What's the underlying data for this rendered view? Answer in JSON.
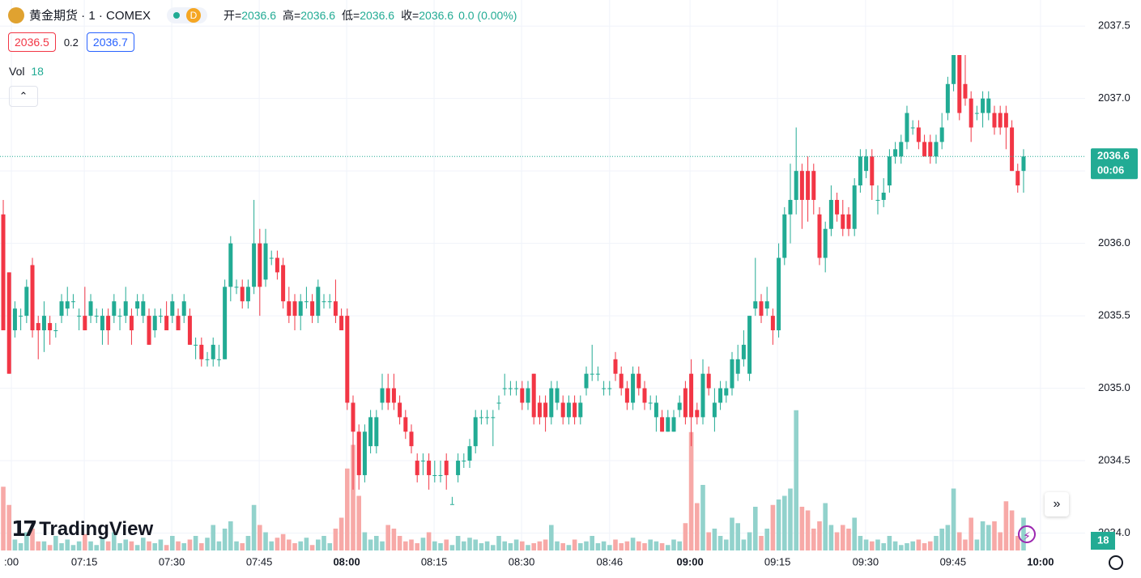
{
  "header": {
    "symbol": "黄金期货 · 1 · COMEX",
    "badge": "D",
    "ohlc": [
      {
        "label": "开=",
        "value": 2036.6
      },
      {
        "label": "高=",
        "value": 2036.6
      },
      {
        "label": "低=",
        "value": 2036.6
      },
      {
        "label": "收=",
        "value": 2036.6
      }
    ],
    "change": "0.0 (0.00%)",
    "bid": 2036.5,
    "spread": 0.2,
    "ask": 2036.7,
    "vol_label": "Vol"
  },
  "logo": "TradingView",
  "chart_data": {
    "type": "candlestick",
    "up_color": "#22ab94",
    "down_color": "#f23645",
    "volume_up_color": "#92d2cc",
    "volume_down_color": "#f7a9a7",
    "grid": true,
    "xlim": [
      -0.56,
      185.56
    ],
    "xticks": [
      {
        "value": 1.39,
        "label": ":00"
      },
      {
        "value": 13.9,
        "label": "07:15"
      },
      {
        "value": 28.9,
        "label": "07:30"
      },
      {
        "value": 43.9,
        "label": "07:45"
      },
      {
        "value": 58.9,
        "label": "08:00",
        "bold": true
      },
      {
        "value": 73.9,
        "label": "08:15"
      },
      {
        "value": 88.9,
        "label": "08:30"
      },
      {
        "value": 104.0,
        "label": "08:46"
      },
      {
        "value": 117.8,
        "label": "09:00",
        "bold": true
      },
      {
        "value": 132.8,
        "label": "09:15"
      },
      {
        "value": 147.9,
        "label": "09:30"
      },
      {
        "value": 162.9,
        "label": "09:45"
      },
      {
        "value": 177.9,
        "label": "10:00",
        "bold": true
      }
    ],
    "ylim": [
      2033.88,
      2037.68
    ],
    "yticks": [
      {
        "value": 2034.0,
        "label": "2034.0"
      },
      2034.5,
      {
        "value": 2035.0,
        "label": "2035.0"
      },
      2035.5,
      {
        "value": 2036.0,
        "label": "2036.0"
      },
      2036.5,
      {
        "value": 2037.0,
        "label": "2037.0"
      },
      2037.5
    ],
    "vlim": [
      0,
      80
    ],
    "last_price": 2036.6,
    "countdown": "00:06",
    "ohlc": [
      [
        2036.2,
        2036.3,
        2035.4,
        2035.4
      ],
      [
        2035.8,
        2035.8,
        2035.1,
        2035.1
      ],
      [
        2035.4,
        2035.6,
        2035.35,
        2035.55
      ],
      [
        2035.5,
        2035.55,
        2035.4,
        2035.5
      ],
      [
        2035.5,
        2035.75,
        2035.45,
        2035.7
      ],
      [
        2035.85,
        2035.9,
        2035.35,
        2035.4
      ],
      [
        2035.45,
        2035.5,
        2035.2,
        2035.4
      ],
      [
        2035.4,
        2035.6,
        2035.25,
        2035.5
      ],
      [
        2035.45,
        2035.5,
        2035.3,
        2035.4
      ],
      [
        2035.4,
        2035.45,
        2035.35,
        2035.4
      ],
      [
        2035.5,
        2035.65,
        2035.45,
        2035.6
      ],
      [
        2035.55,
        2035.7,
        2035.5,
        2035.6
      ],
      [
        2035.6,
        2035.65,
        2035.55,
        2035.6
      ],
      [
        2035.5,
        2035.55,
        2035.4,
        2035.5
      ],
      [
        2035.5,
        2035.7,
        2035.4,
        2035.4
      ],
      [
        2035.5,
        2035.65,
        2035.45,
        2035.6
      ],
      [
        2035.5,
        2035.55,
        2035.45,
        2035.5
      ],
      [
        2035.4,
        2035.55,
        2035.3,
        2035.5
      ],
      [
        2035.5,
        2035.55,
        2035.3,
        2035.4
      ],
      [
        2035.5,
        2035.65,
        2035.45,
        2035.6
      ],
      [
        2035.5,
        2035.55,
        2035.4,
        2035.5
      ],
      [
        2035.5,
        2035.7,
        2035.45,
        2035.6
      ],
      [
        2035.5,
        2035.55,
        2035.3,
        2035.4
      ],
      [
        2035.55,
        2035.65,
        2035.5,
        2035.6
      ],
      [
        2035.5,
        2035.65,
        2035.45,
        2035.6
      ],
      [
        2035.5,
        2035.55,
        2035.3,
        2035.3
      ],
      [
        2035.4,
        2035.55,
        2035.35,
        2035.5
      ],
      [
        2035.5,
        2035.55,
        2035.45,
        2035.5
      ],
      [
        2035.5,
        2035.6,
        2035.4,
        2035.4
      ],
      [
        2035.5,
        2035.65,
        2035.45,
        2035.6
      ],
      [
        2035.5,
        2035.55,
        2035.4,
        2035.4
      ],
      [
        2035.5,
        2035.65,
        2035.45,
        2035.6
      ],
      [
        2035.5,
        2035.55,
        2035.3,
        2035.3
      ],
      [
        2035.3,
        2035.35,
        2035.2,
        2035.3
      ],
      [
        2035.3,
        2035.35,
        2035.15,
        2035.2
      ],
      [
        2035.2,
        2035.25,
        2035.15,
        2035.2
      ],
      [
        2035.2,
        2035.35,
        2035.15,
        2035.3
      ],
      [
        2035.2,
        2035.3,
        2035.15,
        2035.2
      ],
      [
        2035.2,
        2035.75,
        2035.2,
        2035.7
      ],
      [
        2035.7,
        2036.05,
        2035.6,
        2036.0
      ],
      [
        2035.7,
        2035.75,
        2035.65,
        2035.7
      ],
      [
        2035.7,
        2035.75,
        2035.55,
        2035.6
      ],
      [
        2035.6,
        2035.75,
        2035.55,
        2035.7
      ],
      [
        2035.7,
        2036.3,
        2035.65,
        2036.0
      ],
      [
        2036.0,
        2036.1,
        2035.5,
        2035.7
      ],
      [
        2035.75,
        2036.1,
        2035.7,
        2036.0
      ],
      [
        2035.9,
        2035.95,
        2035.85,
        2035.9
      ],
      [
        2035.9,
        2035.95,
        2035.75,
        2035.8
      ],
      [
        2035.85,
        2035.9,
        2035.55,
        2035.6
      ],
      [
        2035.6,
        2035.7,
        2035.45,
        2035.5
      ],
      [
        2035.6,
        2035.65,
        2035.4,
        2035.5
      ],
      [
        2035.5,
        2035.65,
        2035.4,
        2035.6
      ],
      [
        2035.6,
        2035.7,
        2035.55,
        2035.6
      ],
      [
        2035.6,
        2035.65,
        2035.45,
        2035.5
      ],
      [
        2035.5,
        2035.75,
        2035.45,
        2035.7
      ],
      [
        2035.6,
        2035.65,
        2035.55,
        2035.6
      ],
      [
        2035.6,
        2035.65,
        2035.55,
        2035.6
      ],
      [
        2035.6,
        2035.75,
        2035.45,
        2035.5
      ],
      [
        2035.5,
        2035.55,
        2035.4,
        2035.4
      ],
      [
        2035.5,
        2035.55,
        2034.85,
        2034.9
      ],
      [
        2034.9,
        2034.95,
        2034.3,
        2034.7
      ],
      [
        2034.7,
        2034.75,
        2034.3,
        2034.4
      ],
      [
        2034.4,
        2034.75,
        2034.35,
        2034.7
      ],
      [
        2034.6,
        2034.85,
        2034.55,
        2034.8
      ],
      [
        2034.6,
        2034.85,
        2034.55,
        2034.8
      ],
      [
        2034.9,
        2035.1,
        2034.85,
        2035.0
      ],
      [
        2035.0,
        2035.1,
        2034.85,
        2034.9
      ],
      [
        2035.0,
        2035.1,
        2034.85,
        2034.9
      ],
      [
        2034.9,
        2034.95,
        2034.75,
        2034.8
      ],
      [
        2034.8,
        2034.85,
        2034.65,
        2034.7
      ],
      [
        2034.7,
        2034.75,
        2034.55,
        2034.6
      ],
      [
        2034.5,
        2034.55,
        2034.35,
        2034.4
      ],
      [
        2034.5,
        2034.55,
        2034.4,
        2034.5
      ],
      [
        2034.5,
        2034.55,
        2034.3,
        2034.4
      ],
      [
        2034.4,
        2034.5,
        2034.35,
        2034.4
      ],
      [
        2034.4,
        2034.5,
        2034.35,
        2034.4
      ],
      [
        2034.5,
        2034.55,
        2034.3,
        2034.4
      ],
      [
        2034.2,
        2034.25,
        2034.2,
        2034.2
      ],
      [
        2034.4,
        2034.55,
        2034.35,
        2034.5
      ],
      [
        2034.5,
        2034.55,
        2034.45,
        2034.5
      ],
      [
        2034.5,
        2034.65,
        2034.45,
        2034.6
      ],
      [
        2034.6,
        2034.85,
        2034.55,
        2034.8
      ],
      [
        2034.8,
        2034.85,
        2034.75,
        2034.8
      ],
      [
        2034.8,
        2034.85,
        2034.75,
        2034.8
      ],
      [
        2034.8,
        2034.85,
        2034.6,
        2034.8
      ],
      [
        2034.9,
        2034.95,
        2034.85,
        2034.9
      ],
      [
        2035.0,
        2035.1,
        2034.95,
        2035.0
      ],
      [
        2035.0,
        2035.05,
        2034.95,
        2035.0
      ],
      [
        2035.0,
        2035.05,
        2034.95,
        2035.0
      ],
      [
        2035.0,
        2035.05,
        2034.85,
        2034.9
      ],
      [
        2034.9,
        2035.05,
        2034.85,
        2035.0
      ],
      [
        2035.1,
        2035.1,
        2034.75,
        2034.8
      ],
      [
        2034.9,
        2034.95,
        2034.75,
        2034.8
      ],
      [
        2034.9,
        2034.95,
        2034.7,
        2034.8
      ],
      [
        2034.8,
        2035.05,
        2034.75,
        2035.0
      ],
      [
        2034.9,
        2035.05,
        2034.85,
        2035.0
      ],
      [
        2034.9,
        2034.95,
        2034.75,
        2034.8
      ],
      [
        2034.8,
        2034.95,
        2034.75,
        2034.9
      ],
      [
        2034.9,
        2034.95,
        2034.75,
        2034.8
      ],
      [
        2034.8,
        2034.95,
        2034.75,
        2034.9
      ],
      [
        2035.0,
        2035.15,
        2034.95,
        2035.1
      ],
      [
        2035.1,
        2035.3,
        2035.05,
        2035.1
      ],
      [
        2035.1,
        2035.15,
        2035.05,
        2035.1
      ],
      [
        2035.0,
        2035.05,
        2034.95,
        2035.0
      ],
      [
        2035.0,
        2035.05,
        2034.95,
        2035.0
      ],
      [
        2035.2,
        2035.25,
        2035.05,
        2035.1
      ],
      [
        2035.1,
        2035.15,
        2034.95,
        2035.0
      ],
      [
        2035.0,
        2035.05,
        2034.85,
        2034.9
      ],
      [
        2034.9,
        2035.15,
        2034.85,
        2035.1
      ],
      [
        2035.1,
        2035.15,
        2034.95,
        2035.0
      ],
      [
        2035.0,
        2035.05,
        2034.85,
        2034.9
      ],
      [
        2034.9,
        2034.95,
        2034.85,
        2034.9
      ],
      [
        2034.8,
        2034.95,
        2034.7,
        2034.9
      ],
      [
        2034.8,
        2034.85,
        2034.7,
        2034.7
      ],
      [
        2034.7,
        2034.85,
        2034.7,
        2034.8
      ],
      [
        2034.7,
        2034.85,
        2034.7,
        2034.8
      ],
      [
        2034.85,
        2034.95,
        2034.8,
        2034.9
      ],
      [
        2035.0,
        2035.05,
        2034.75,
        2034.8
      ],
      [
        2035.1,
        2035.2,
        2034.6,
        2034.8
      ],
      [
        2034.85,
        2034.9,
        2034.75,
        2034.8
      ],
      [
        2034.8,
        2035.2,
        2034.75,
        2035.1
      ],
      [
        2035.1,
        2035.15,
        2034.95,
        2035.0
      ],
      [
        2034.8,
        2035.0,
        2034.7,
        2034.9
      ],
      [
        2034.9,
        2035.05,
        2034.85,
        2035.0
      ],
      [
        2034.95,
        2035.05,
        2034.9,
        2035.0
      ],
      [
        2035.0,
        2035.25,
        2034.95,
        2035.2
      ],
      [
        2035.1,
        2035.3,
        2035.05,
        2035.2
      ],
      [
        2035.2,
        2035.4,
        2035.15,
        2035.3
      ],
      [
        2035.1,
        2035.5,
        2035.05,
        2035.5
      ],
      [
        2035.55,
        2035.9,
        2035.5,
        2035.6
      ],
      [
        2035.6,
        2035.65,
        2035.45,
        2035.5
      ],
      [
        2035.55,
        2035.7,
        2035.5,
        2035.6
      ],
      [
        2035.5,
        2035.55,
        2035.3,
        2035.4
      ],
      [
        2035.4,
        2036.0,
        2035.35,
        2035.9
      ],
      [
        2035.9,
        2036.25,
        2035.85,
        2036.2
      ],
      [
        2036.2,
        2036.55,
        2036.0,
        2036.3
      ],
      [
        2036.3,
        2036.8,
        2036.2,
        2036.5
      ],
      [
        2036.5,
        2036.55,
        2036.1,
        2036.3
      ],
      [
        2036.5,
        2036.6,
        2036.15,
        2036.3
      ],
      [
        2036.5,
        2036.55,
        2036.2,
        2036.3
      ],
      [
        2036.2,
        2036.25,
        2035.85,
        2035.9
      ],
      [
        2035.9,
        2036.15,
        2035.8,
        2036.1
      ],
      [
        2036.1,
        2036.4,
        2036.05,
        2036.3
      ],
      [
        2036.3,
        2036.35,
        2036.15,
        2036.2
      ],
      [
        2036.2,
        2036.3,
        2036.05,
        2036.1
      ],
      [
        2036.2,
        2036.25,
        2036.05,
        2036.1
      ],
      [
        2036.1,
        2036.45,
        2036.05,
        2036.4
      ],
      [
        2036.4,
        2036.65,
        2036.35,
        2036.6
      ],
      [
        2036.5,
        2036.65,
        2036.45,
        2036.6
      ],
      [
        2036.6,
        2036.65,
        2036.3,
        2036.4
      ],
      [
        2036.3,
        2036.4,
        2036.2,
        2036.3
      ],
      [
        2036.3,
        2036.45,
        2036.25,
        2036.35
      ],
      [
        2036.4,
        2036.65,
        2036.35,
        2036.6
      ],
      [
        2036.6,
        2036.7,
        2036.55,
        2036.65
      ],
      [
        2036.6,
        2036.75,
        2036.55,
        2036.7
      ],
      [
        2036.7,
        2036.95,
        2036.65,
        2036.9
      ],
      [
        2036.8,
        2036.85,
        2036.75,
        2036.8
      ],
      [
        2036.8,
        2036.85,
        2036.65,
        2036.7
      ],
      [
        2036.7,
        2036.75,
        2036.6,
        2036.6
      ],
      [
        2036.7,
        2036.75,
        2036.55,
        2036.6
      ],
      [
        2036.6,
        2036.75,
        2036.55,
        2036.7
      ],
      [
        2036.7,
        2036.9,
        2036.65,
        2036.8
      ],
      [
        2036.9,
        2037.15,
        2036.85,
        2037.1
      ],
      [
        2037.1,
        2037.3,
        2037.05,
        2037.3
      ],
      [
        2037.3,
        2037.3,
        2036.85,
        2036.9
      ],
      [
        2037.1,
        2037.3,
        2036.95,
        2037.0
      ],
      [
        2037.0,
        2037.05,
        2036.7,
        2036.8
      ],
      [
        2036.9,
        2036.95,
        2036.85,
        2036.9
      ],
      [
        2036.9,
        2037.05,
        2036.8,
        2037.0
      ],
      [
        2036.9,
        2037.05,
        2036.85,
        2037.0
      ],
      [
        2036.9,
        2036.95,
        2036.75,
        2036.8
      ],
      [
        2036.9,
        2036.95,
        2036.75,
        2036.8
      ],
      [
        2036.9,
        2036.95,
        2036.65,
        2036.8
      ],
      [
        2036.8,
        2036.85,
        2036.5,
        2036.5
      ],
      [
        2036.5,
        2036.55,
        2036.35,
        2036.4
      ],
      [
        2036.5,
        2036.65,
        2036.35,
        2036.6
      ]
    ],
    "volume": [
      35,
      25,
      6,
      4,
      10,
      12,
      5,
      5,
      3,
      8,
      4,
      6,
      3,
      5,
      9,
      5,
      3,
      7,
      5,
      10,
      4,
      6,
      5,
      3,
      7,
      5,
      4,
      6,
      3,
      8,
      5,
      4,
      6,
      8,
      4,
      7,
      14,
      5,
      12,
      16,
      5,
      4,
      8,
      25,
      14,
      10,
      5,
      7,
      9,
      6,
      4,
      5,
      7,
      3,
      6,
      8,
      4,
      12,
      18,
      45,
      58,
      30,
      10,
      6,
      8,
      5,
      14,
      12,
      8,
      5,
      6,
      4,
      7,
      10,
      5,
      4,
      6,
      3,
      8,
      5,
      7,
      6,
      4,
      5,
      3,
      8,
      5,
      4,
      6,
      5,
      3,
      4,
      5,
      6,
      14,
      5,
      4,
      3,
      6,
      4,
      5,
      8,
      4,
      5,
      3,
      6,
      4,
      5,
      7,
      5,
      4,
      6,
      5,
      4,
      3,
      6,
      5,
      15,
      65,
      26,
      36,
      10,
      12,
      8,
      6,
      18,
      15,
      6,
      10,
      24,
      8,
      12,
      25,
      28,
      30,
      34,
      77,
      24,
      22,
      12,
      16,
      26,
      14,
      10,
      14,
      12,
      18,
      8,
      6,
      5,
      6,
      4,
      8,
      5,
      3,
      4,
      5,
      6,
      4,
      5,
      8,
      12,
      14,
      34,
      10,
      6,
      18,
      6,
      16,
      14,
      16,
      10,
      27,
      22,
      8,
      18
    ]
  }
}
